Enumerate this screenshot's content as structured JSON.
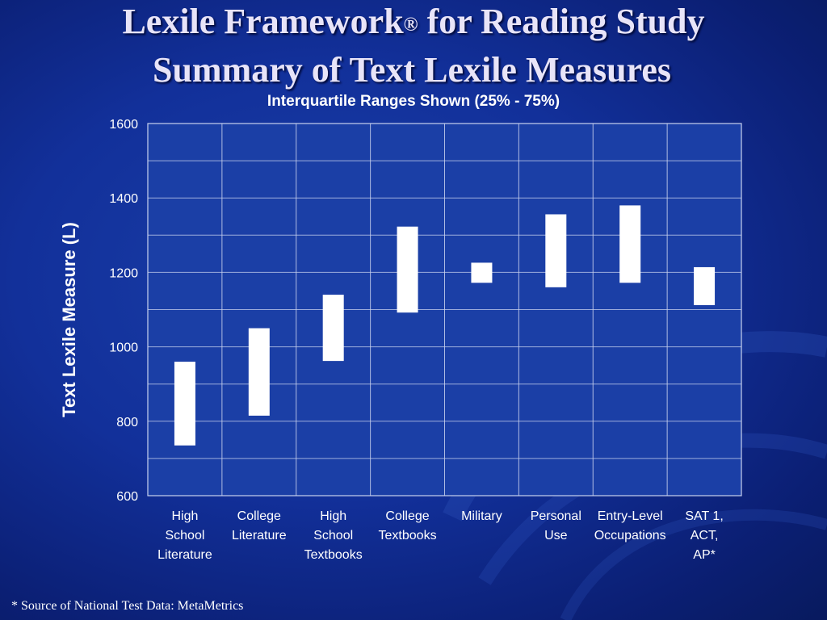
{
  "title": {
    "line1_text": "Lexile  Framework",
    "line1_mark": "®",
    "line1_rest": " for Reading Study",
    "line2": "Summary of Text Lexile Measures"
  },
  "footnote": "* Source of National Test Data: MetaMetrics",
  "chart_data": {
    "type": "bar",
    "subtype": "floating-range",
    "subtitle": "Interquartile Ranges Shown (25% - 75%)",
    "xlabel": "",
    "ylabel": "Text Lexile Measure (L)",
    "ylim": [
      600,
      1600
    ],
    "yticks": [
      600,
      800,
      1000,
      1200,
      1400,
      1600
    ],
    "grid": true,
    "categories": [
      [
        "High",
        "School",
        "Literature"
      ],
      [
        "College",
        "Literature"
      ],
      [
        "High",
        "School",
        "Textbooks"
      ],
      [
        "College",
        "Textbooks"
      ],
      [
        "Military"
      ],
      [
        "Personal",
        "Use"
      ],
      [
        "Entry-Level",
        "Occupations"
      ],
      [
        "SAT 1,",
        "ACT,",
        "AP*"
      ]
    ],
    "ranges": [
      [
        735,
        960
      ],
      [
        815,
        1050
      ],
      [
        962,
        1140
      ],
      [
        1092,
        1323
      ],
      [
        1172,
        1226
      ],
      [
        1160,
        1356
      ],
      [
        1172,
        1380
      ],
      [
        1112,
        1214
      ]
    ],
    "colors": {
      "plot_bg": "#1b3fa6",
      "grid": "#c9d2ee",
      "bar": "#ffffff",
      "text": "#ffffff"
    }
  }
}
